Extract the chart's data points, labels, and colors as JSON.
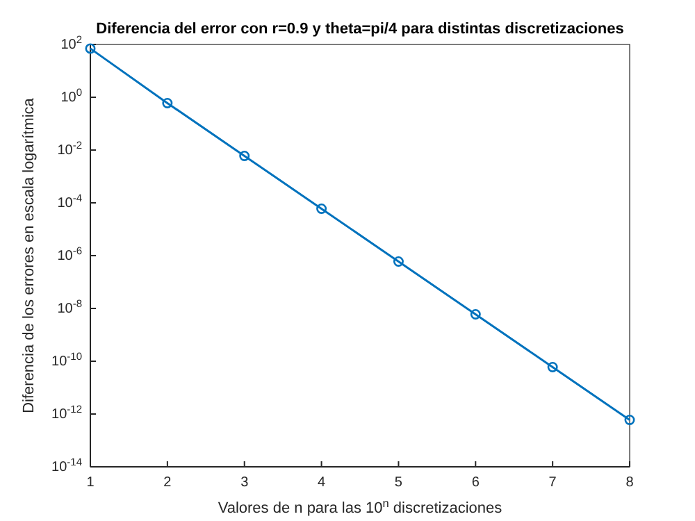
{
  "chart_data": {
    "type": "line",
    "title": "Diferencia del error con r=0.9 y theta=pi/4 para distintas discretizaciones",
    "xlabel": "Valores de n para las 10$^{n}$ discretizaciones",
    "ylabel": "Diferencia de los errores en escala logarítmica",
    "x": [
      1,
      2,
      3,
      4,
      5,
      6,
      7,
      8
    ],
    "series": [
      {
        "color": "#0072bd",
        "values": [
          70,
          0.6,
          0.006,
          6e-05,
          6e-07,
          6e-09,
          6e-11,
          6e-13
        ]
      }
    ],
    "log": true,
    "marker": "circle",
    "line_style": "solid",
    "grid": false,
    "xlim": [
      1,
      8
    ],
    "xticks": [
      1,
      2,
      3,
      4,
      5,
      6,
      7,
      8
    ],
    "ylim": [
      1e-14,
      100
    ],
    "yticks": [
      {
        "value": 1e-14,
        "label": "10$^{-14}$"
      },
      {
        "value": 1e-12,
        "label": "10$^{-12}$"
      },
      {
        "value": 1e-10,
        "label": "10$^{-10}$"
      },
      {
        "value": 1e-08,
        "label": "10$^{-8}$"
      },
      {
        "value": 1e-06,
        "label": "10$^{-6}$"
      },
      {
        "value": 0.0001,
        "label": "10$^{-4}$"
      },
      {
        "value": 0.01,
        "label": "10$^{-2}$"
      },
      {
        "value": 1,
        "label": "10$^{0}$"
      },
      {
        "value": 100,
        "label": "10$^{2}$"
      }
    ]
  }
}
